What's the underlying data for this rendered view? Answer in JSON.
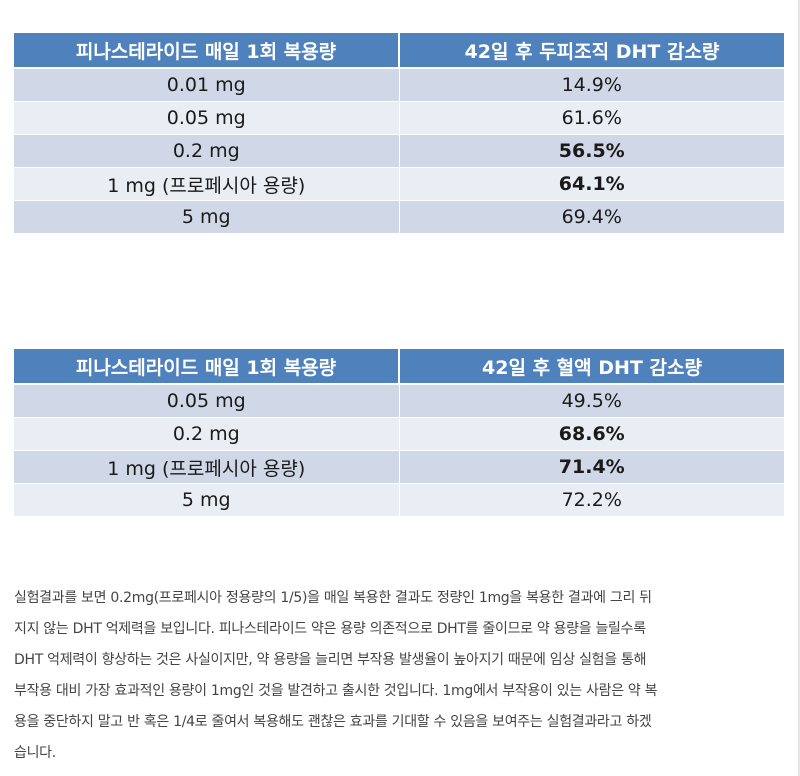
{
  "table1": {
    "headers": [
      "피나스테라이드 매일 1회 복용량",
      "42일 후 두피조직 DHT 감소량"
    ],
    "rows": [
      {
        "dose": "0.01 mg",
        "reduction": "14.9%",
        "bold": false
      },
      {
        "dose": "0.05 mg",
        "reduction": "61.6%",
        "bold": false
      },
      {
        "dose": "0.2 mg",
        "reduction": "56.5%",
        "bold": true
      },
      {
        "dose": "1 mg (프로페시아 용량)",
        "reduction": "64.1%",
        "bold": true
      },
      {
        "dose": "5 mg",
        "reduction": "69.4%",
        "bold": false
      }
    ]
  },
  "table2": {
    "headers": [
      "피나스테라이드 매일 1회 복용량",
      "42일 후 혈액 DHT 감소량"
    ],
    "rows": [
      {
        "dose": "0.05 mg",
        "reduction": "49.5%",
        "bold": false
      },
      {
        "dose": "0.2 mg",
        "reduction": "68.6%",
        "bold": true
      },
      {
        "dose": "1 mg (프로페시아 용량)",
        "reduction": "71.4%",
        "bold": true
      },
      {
        "dose": "5 mg",
        "reduction": "72.2%",
        "bold": false
      }
    ]
  },
  "paragraph": {
    "lines": [
      "실험결과를 보면 0.2mg(프로페시아 정용량의 1/5)을 매일 복용한 결과도 정량인 1mg을 복용한 결과에 그리 뒤",
      "지지 않는 DHT 억제력을 보입니다. 피나스테라이드 약은 용량 의존적으로 DHT를 줄이므로 약 용량을 늘릴수록",
      "DHT 억제력이 향상하는 것은 사실이지만, 약 용량을 늘리면 부작용 발생율이 높아지기 때문에 임상 실험을 통해",
      "부작용 대비 가장 효과적인 용량이 1mg인 것을 발견하고 출시한 것입니다. 1mg에서 부작용이 있는 사람은 약 복",
      "용을 중단하지 말고 반 혹은 1/4로 줄여서 복용해도 괜찮은 효과를 기대할 수 있음을 보여주는 실험결과라고 하겠",
      "습니다."
    ]
  },
  "colors": {
    "header_bg": "#4f81bd",
    "row_odd": "#d0d8e8",
    "row_even": "#e9edf4",
    "text": "#1a1a1a",
    "paragraph_text": "#444444"
  }
}
